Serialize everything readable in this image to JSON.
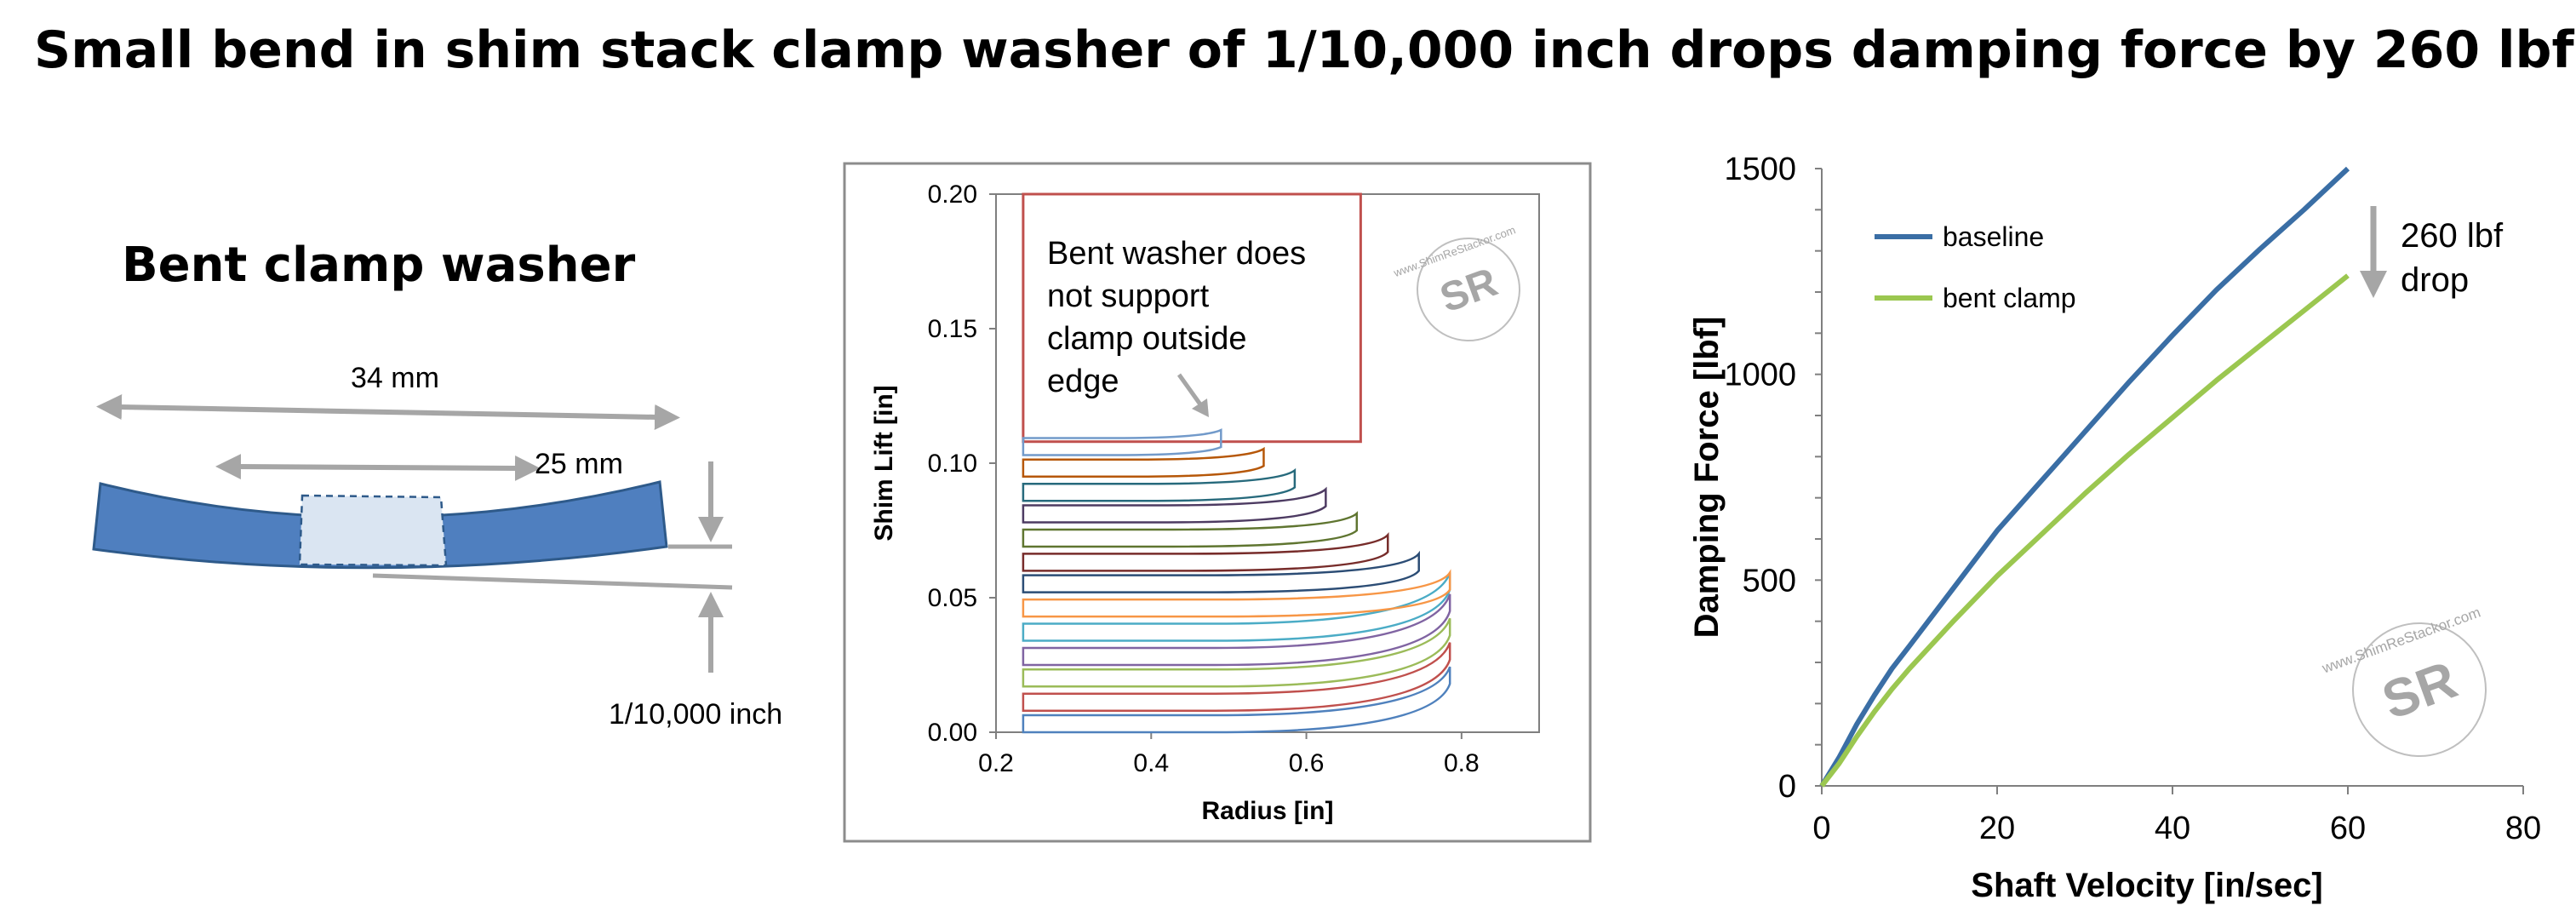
{
  "title": "Small bend in shim stack clamp washer of 1/10,000 inch drops damping force by 260 lbf",
  "diagram": {
    "heading": "Bent clamp washer",
    "dim_outer": "34 mm",
    "dim_inner": "25 mm",
    "dim_gap": "1/10,000 inch",
    "colors": {
      "washer": "#4f7fbf",
      "washer_inner": "#dae5f2",
      "arrow": "#a6a6a6"
    }
  },
  "watermark": {
    "line1": "www.ShimReStackor.com",
    "monogram": "SR"
  },
  "chart_data": [
    {
      "type": "line",
      "title": "",
      "xlabel": "Radius [in]",
      "ylabel": "Shim Lift [in]",
      "xlim": [
        0.2,
        0.9
      ],
      "ylim": [
        0.0,
        0.2
      ],
      "xticks": [
        "0.2",
        "0.4",
        "0.6",
        "0.8"
      ],
      "yticks": [
        "0.00",
        "0.05",
        "0.10",
        "0.15",
        "0.20"
      ],
      "grid": false,
      "annotation": [
        "Bent washer does",
        "not support",
        "clamp outside",
        "edge"
      ],
      "clamp_box": {
        "x0": 0.235,
        "x1": 0.67,
        "y_bottom": 0.108,
        "y_top": 0.2,
        "color": "#c0504d"
      },
      "clamp_radius": 0.235,
      "series": [
        {
          "x_end": 0.785,
          "base": 0.0,
          "lift": 0.018,
          "color": "#4f81bd"
        },
        {
          "x_end": 0.785,
          "base": 0.008,
          "lift": 0.019,
          "color": "#c0504d"
        },
        {
          "x_end": 0.785,
          "base": 0.017,
          "lift": 0.019,
          "color": "#9bbb59"
        },
        {
          "x_end": 0.785,
          "base": 0.025,
          "lift": 0.02,
          "color": "#8064a2"
        },
        {
          "x_end": 0.785,
          "base": 0.034,
          "lift": 0.019,
          "color": "#4bacc6"
        },
        {
          "x_end": 0.785,
          "base": 0.043,
          "lift": 0.01,
          "color": "#f79646"
        },
        {
          "x_end": 0.745,
          "base": 0.052,
          "lift": 0.008,
          "color": "#2c4d75"
        },
        {
          "x_end": 0.705,
          "base": 0.06,
          "lift": 0.007,
          "color": "#772c2a"
        },
        {
          "x_end": 0.665,
          "base": 0.069,
          "lift": 0.006,
          "color": "#5f7530"
        },
        {
          "x_end": 0.625,
          "base": 0.078,
          "lift": 0.006,
          "color": "#4d3b62"
        },
        {
          "x_end": 0.585,
          "base": 0.086,
          "lift": 0.005,
          "color": "#276a7c"
        },
        {
          "x_end": 0.545,
          "base": 0.095,
          "lift": 0.004,
          "color": "#b65708"
        },
        {
          "x_end": 0.49,
          "base": 0.103,
          "lift": 0.003,
          "color": "#729aca"
        }
      ]
    },
    {
      "type": "line",
      "title": "",
      "xlabel": "Shaft Velocity [in/sec]",
      "ylabel": "Damping Force [lbf]",
      "xlim": [
        0,
        80
      ],
      "ylim": [
        0,
        1500
      ],
      "xticks": [
        "0",
        "20",
        "40",
        "60",
        "80"
      ],
      "yticks": [
        "0",
        "500",
        "1000",
        "1500"
      ],
      "grid": false,
      "legend_position": "top-left",
      "annotation": [
        "260 lbf",
        "drop"
      ],
      "series": [
        {
          "name": "baseline",
          "color": "#3a6ea5",
          "x": [
            0,
            2,
            4,
            6,
            8,
            10,
            15,
            20,
            25,
            30,
            35,
            40,
            45,
            50,
            55,
            60
          ],
          "y": [
            0,
            70,
            150,
            220,
            285,
            340,
            480,
            620,
            740,
            860,
            980,
            1095,
            1205,
            1305,
            1400,
            1500
          ]
        },
        {
          "name": "bent clamp",
          "color": "#9bc750",
          "x": [
            0,
            2,
            4,
            6,
            8,
            10,
            15,
            20,
            25,
            30,
            35,
            40,
            45,
            50,
            55,
            60
          ],
          "y": [
            0,
            55,
            120,
            180,
            235,
            285,
            400,
            510,
            610,
            710,
            805,
            895,
            985,
            1070,
            1155,
            1240
          ]
        }
      ]
    }
  ]
}
